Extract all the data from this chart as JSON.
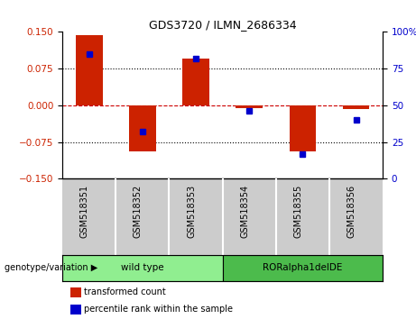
{
  "title": "GDS3720 / ILMN_2686334",
  "samples": [
    "GSM518351",
    "GSM518352",
    "GSM518353",
    "GSM518354",
    "GSM518355",
    "GSM518356"
  ],
  "transformed_counts": [
    0.143,
    -0.095,
    0.095,
    -0.005,
    -0.095,
    -0.008
  ],
  "percentile_ranks": [
    85,
    32,
    82,
    46,
    17,
    40
  ],
  "groups": [
    {
      "label": "wild type",
      "indices": [
        0,
        1,
        2
      ],
      "color": "#90EE90"
    },
    {
      "label": "RORalpha1delDE",
      "indices": [
        3,
        4,
        5
      ],
      "color": "#4CBB4C"
    }
  ],
  "ylim_left": [
    -0.15,
    0.15
  ],
  "ylim_right": [
    0,
    100
  ],
  "yticks_left": [
    -0.15,
    -0.075,
    0,
    0.075,
    0.15
  ],
  "yticks_right": [
    0,
    25,
    50,
    75,
    100
  ],
  "bar_color": "#CC2200",
  "marker_color": "#0000CC",
  "zero_line_color": "#CC0000",
  "dotted_line_color": "#000000",
  "background_color": "#ffffff",
  "plot_bg_color": "#ffffff",
  "xtick_bg_color": "#CCCCCC",
  "legend_items": [
    "transformed count",
    "percentile rank within the sample"
  ],
  "group_label": "genotype/variation"
}
